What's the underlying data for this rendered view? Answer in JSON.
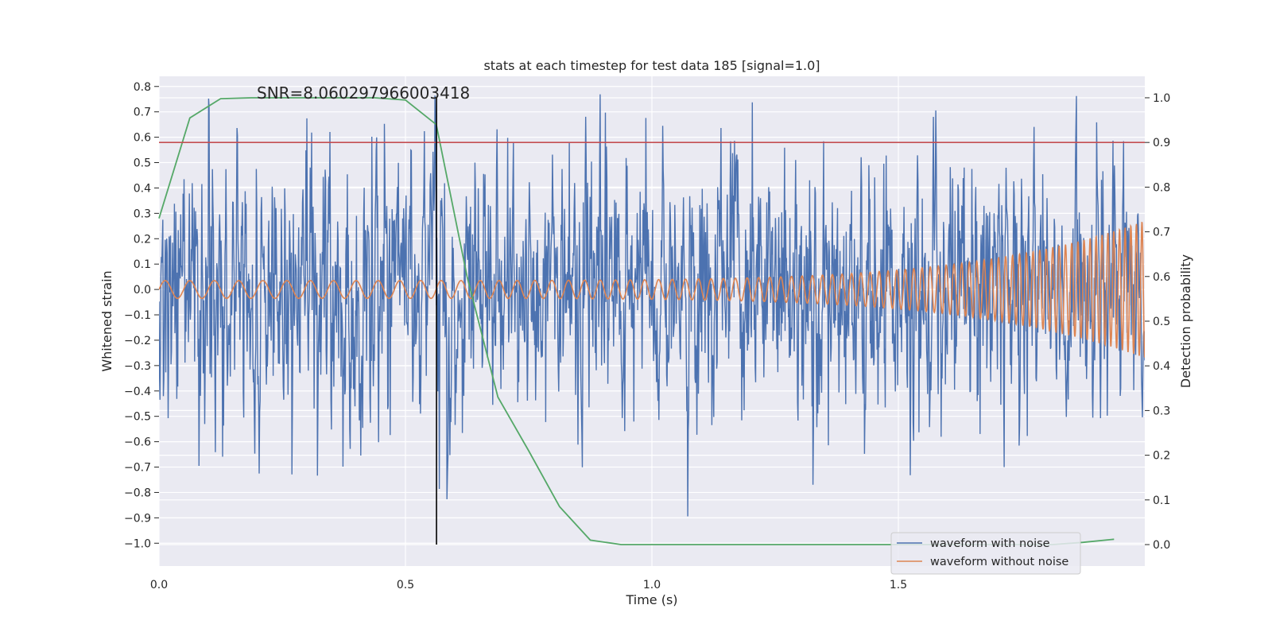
{
  "chart_data": {
    "type": "line",
    "title": "stats at each timestep for test data 185 [signal=1.0]",
    "annotation": "SNR=8.060297966003418",
    "xlabel": "Time (s)",
    "ylabel": "Whitened strain",
    "y2label": "Detection probability",
    "xlim": [
      0.0,
      2.0
    ],
    "ylim": [
      -1.09,
      0.84
    ],
    "y2lim": [
      -0.048,
      1.048
    ],
    "xticks": [
      "0.0",
      "0.5",
      "1.0",
      "1.5"
    ],
    "xtick_values": [
      0.0,
      0.5,
      1.0,
      1.5
    ],
    "yticks": [
      "−1.0",
      "−0.9",
      "−0.8",
      "−0.7",
      "−0.6",
      "−0.5",
      "−0.4",
      "−0.3",
      "−0.2",
      "−0.1",
      "0.0",
      "0.1",
      "0.2",
      "0.3",
      "0.4",
      "0.5",
      "0.6",
      "0.7",
      "0.8"
    ],
    "ytick_values": [
      -1.0,
      -0.9,
      -0.8,
      -0.7,
      -0.6,
      -0.5,
      -0.4,
      -0.3,
      -0.2,
      -0.1,
      0.0,
      0.1,
      0.2,
      0.3,
      0.4,
      0.5,
      0.6,
      0.7,
      0.8
    ],
    "y2ticks": [
      "0.0",
      "0.1",
      "0.2",
      "0.3",
      "0.4",
      "0.5",
      "0.6",
      "0.7",
      "0.8",
      "0.9",
      "1.0"
    ],
    "y2tick_values": [
      0.0,
      0.1,
      0.2,
      0.3,
      0.4,
      0.5,
      0.6,
      0.7,
      0.8,
      0.9,
      1.0
    ],
    "threshold": {
      "axis": "right",
      "value": 0.9
    },
    "marker_time": 0.563,
    "legend": {
      "placement": "lower-right",
      "entries": [
        "waveform with noise",
        "waveform without noise"
      ]
    },
    "series": [
      {
        "name": "waveform with noise",
        "axis": "left",
        "kind": "noise",
        "n_samples": 2048,
        "amplitude_std": 0.27,
        "min": -1.0,
        "max": 0.77
      },
      {
        "name": "waveform without noise",
        "axis": "left",
        "kind": "chirp",
        "start_freq_hz": 20,
        "end_freq_hz": 90,
        "start_amp": 0.035,
        "end_amp": 0.27
      },
      {
        "name": "detection probability",
        "axis": "right",
        "kind": "line",
        "x": [
          0.0,
          0.0625,
          0.125,
          0.1875,
          0.25,
          0.3125,
          0.375,
          0.4375,
          0.5,
          0.5625,
          0.625,
          0.6875,
          0.75,
          0.8125,
          0.875,
          0.9375,
          1.0,
          1.0625,
          1.125,
          1.1875,
          1.25,
          1.3125,
          1.375,
          1.4375,
          1.5,
          1.5625,
          1.625,
          1.6875,
          1.75,
          1.8125,
          1.875,
          1.9375
        ],
        "y": [
          0.73,
          0.955,
          0.998,
          1.0,
          1.0,
          1.0,
          1.0,
          1.0,
          0.995,
          0.94,
          0.6,
          0.33,
          0.21,
          0.085,
          0.01,
          0.0,
          0.0,
          0.0,
          0.0,
          0.0,
          0.0,
          0.0,
          0.0,
          0.0,
          0.0,
          0.0,
          0.0,
          0.0,
          0.0,
          0.0,
          0.005,
          0.012
        ]
      }
    ],
    "colors": {
      "noise": "#4c72b0",
      "clean": "#dd8452",
      "prob": "#55a868",
      "threshold": "#c44e52",
      "marker": "#000000",
      "plot_bg": "#eaeaf2",
      "grid": "#ffffff"
    }
  }
}
